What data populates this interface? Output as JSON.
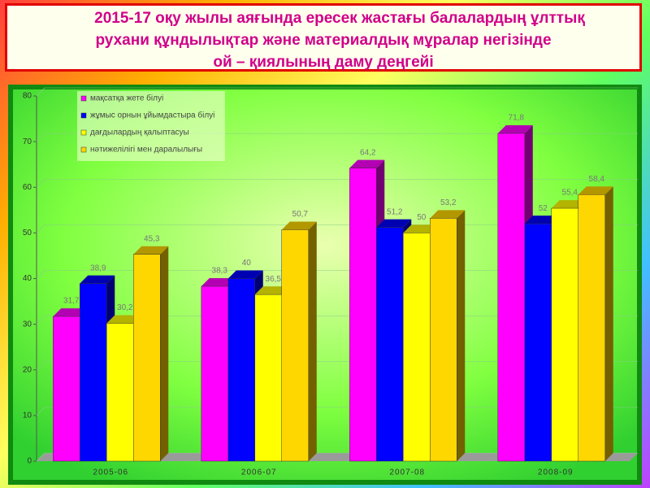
{
  "chart_data": {
    "type": "bar3d",
    "title_lines": [
      "2015-17 оқу жылы аяғында ересек жастағы балалардың ұлттық",
      "рухани құндылықтар және материалдық мұралар негізінде",
      "ой – қиялының даму деңгейі"
    ],
    "categories": [
      "2005-06",
      "2006-07",
      "2007-08",
      "2008-09"
    ],
    "series": [
      {
        "name": "мақсатқа жете білуі",
        "color": "#ff00ff",
        "values": [
          31.7,
          38.3,
          64.2,
          71.8
        ],
        "value_labels": [
          "31,7",
          "38,3",
          "64,2",
          "71,8"
        ]
      },
      {
        "name": "жұмыс орнын ұйымдастыра білуі",
        "color": "#0000ff",
        "values": [
          38.9,
          40,
          51.2,
          52
        ],
        "value_labels": [
          "38,9",
          "40",
          "51,2",
          "52"
        ]
      },
      {
        "name": "дағдылардың қалыптасуы",
        "color": "#ffff00",
        "values": [
          30.2,
          36.5,
          50,
          55.4
        ],
        "value_labels": [
          "30,2",
          "36,5",
          "50",
          "55,4"
        ]
      },
      {
        "name": "нәтижелілігі мен даралылығы",
        "color": "#ffd700",
        "values": [
          45.3,
          50.7,
          53.2,
          58.4
        ],
        "value_labels": [
          "45,3",
          "50,7",
          "53,2",
          "58,4"
        ]
      }
    ],
    "ylim": [
      0,
      80
    ],
    "yticks": [
      0,
      10,
      20,
      30,
      40,
      50,
      60,
      70,
      80
    ],
    "grid": true
  }
}
